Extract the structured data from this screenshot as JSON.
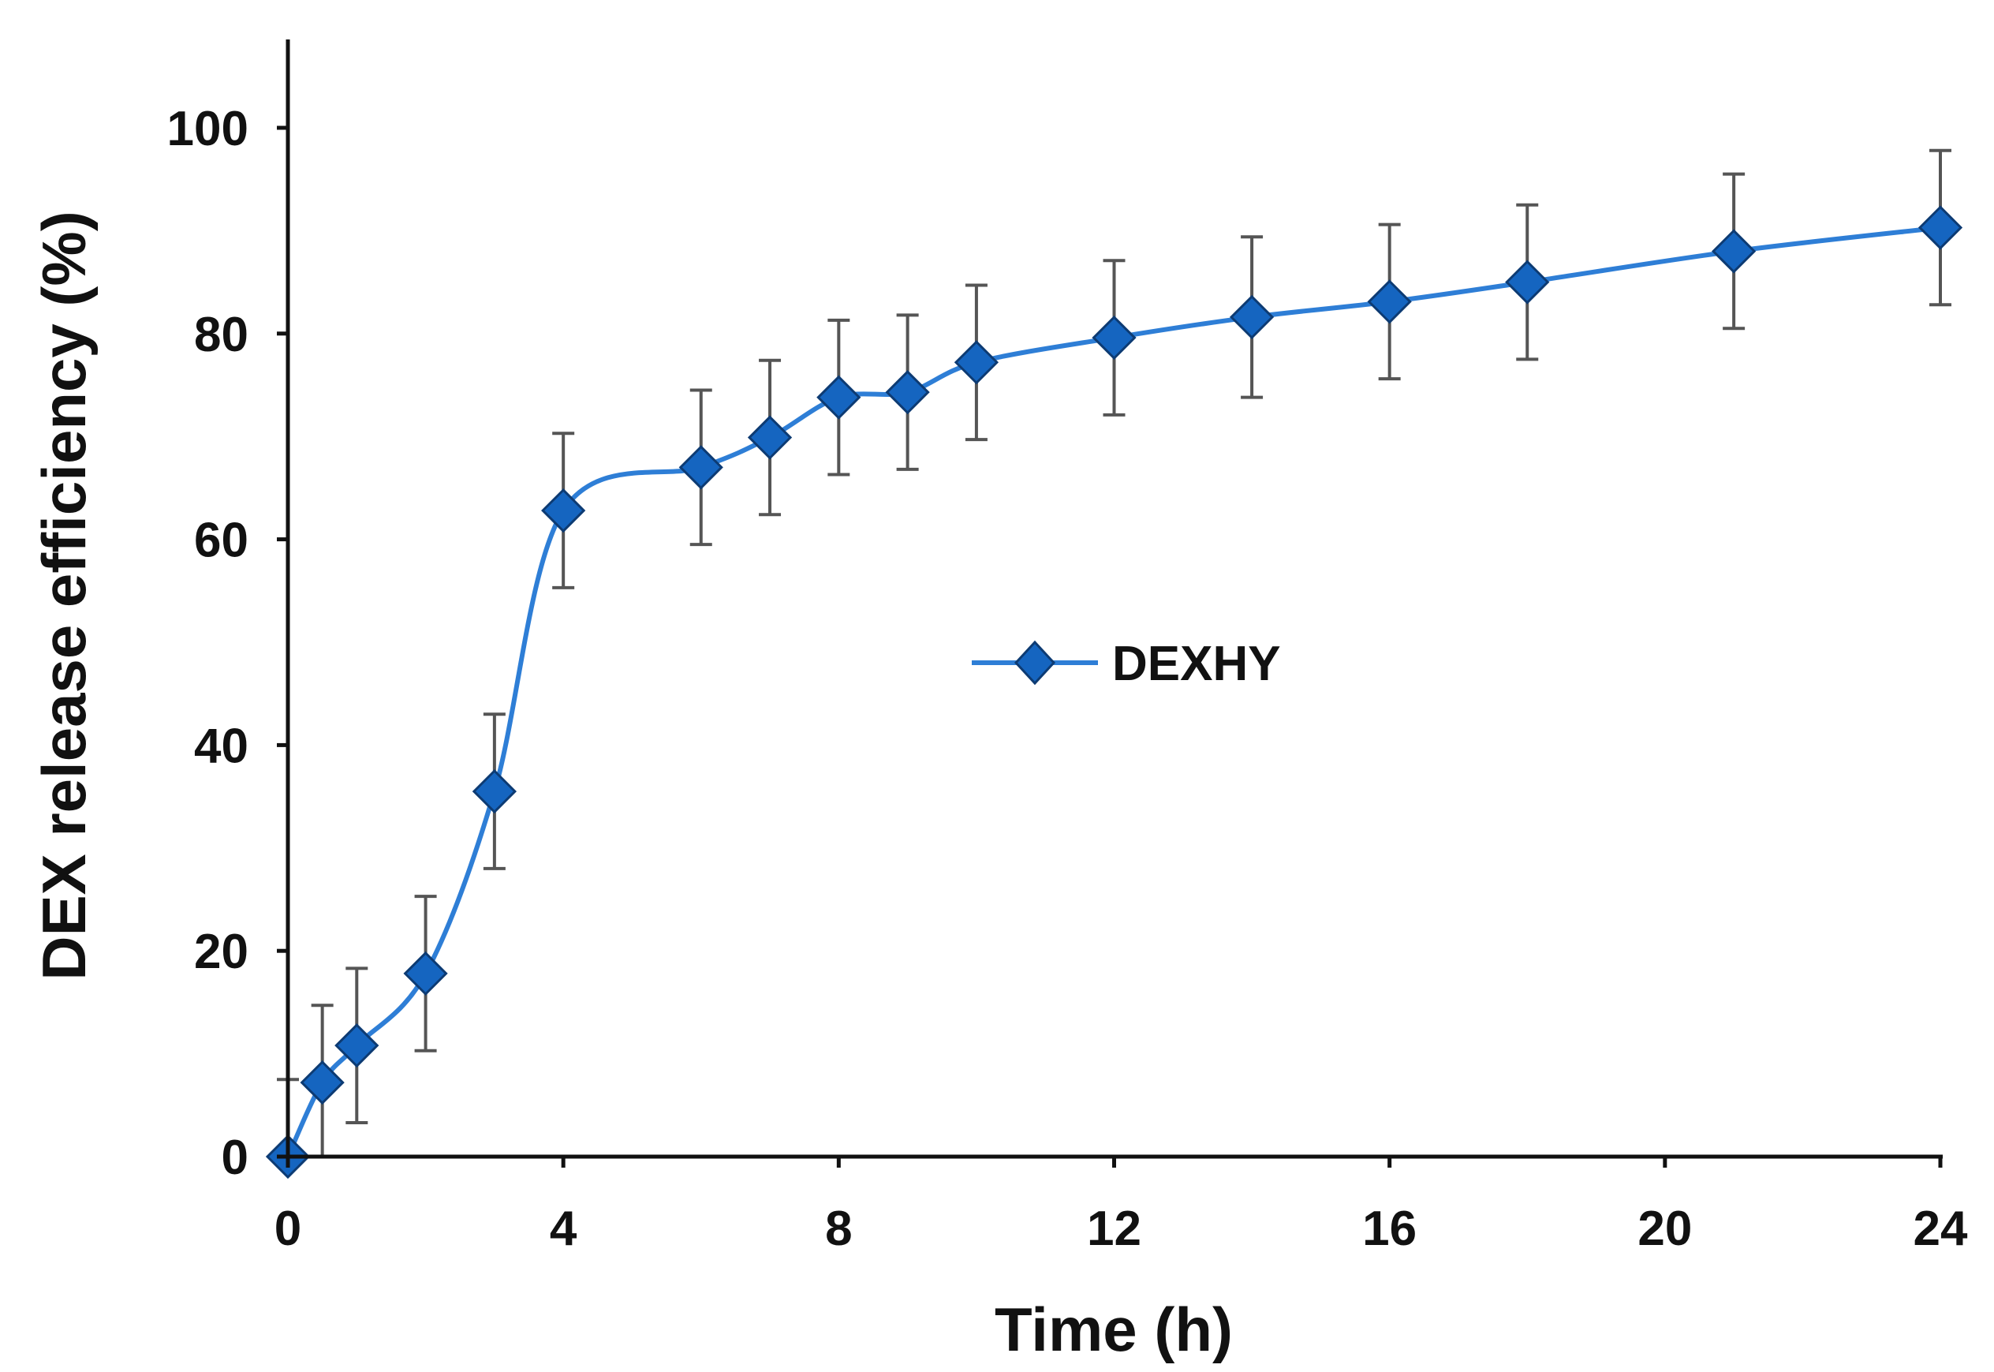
{
  "chart_data": {
    "type": "line",
    "title": "",
    "xlabel": "Time (h)",
    "ylabel": "DEX release efficiency (%)",
    "xlim": [
      0,
      24
    ],
    "ylim": [
      0,
      100
    ],
    "xticks": [
      0,
      4,
      8,
      12,
      16,
      20,
      24
    ],
    "yticks": [
      0,
      20,
      40,
      60,
      80,
      100
    ],
    "grid": false,
    "legend": {
      "position": "center",
      "entries": [
        "DEXHY"
      ]
    },
    "series": [
      {
        "name": "DEXHY",
        "color": "#2e7ed6",
        "marker": "diamond",
        "marker_color": "#1565c0",
        "marker_edge_color": "#0d3b73",
        "errorbar_color": "#555555",
        "smooth": true,
        "x": [
          0,
          0.5,
          1,
          2,
          3,
          4,
          6,
          7,
          8,
          9,
          10,
          12,
          14,
          16,
          18,
          21,
          24
        ],
        "y": [
          0,
          7.2,
          10.8,
          17.8,
          35.5,
          62.8,
          67.0,
          69.9,
          73.8,
          74.3,
          77.2,
          79.6,
          81.6,
          83.1,
          85.0,
          88.0,
          90.3
        ],
        "error": [
          7.5,
          7.5,
          7.5,
          7.5,
          7.5,
          7.5,
          7.5,
          7.5,
          7.5,
          7.5,
          7.5,
          7.5,
          7.8,
          7.5,
          7.5,
          7.5,
          7.5
        ]
      }
    ]
  }
}
